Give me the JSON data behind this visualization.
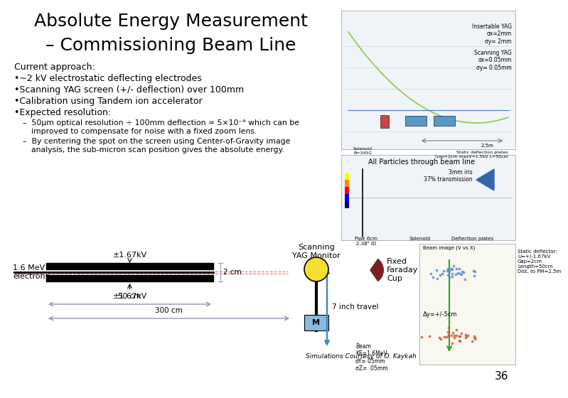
{
  "title_line1": "Absolute Energy Measurement",
  "title_line2": "– Commissioning Beam Line",
  "title_fontsize": 18,
  "background_color": "#ffffff",
  "bullet_header": "Current approach:",
  "bullets": [
    "•~2 kV electrostatic deflecting electrodes",
    "•Scanning YAG screen (+/- deflection) over 100mm",
    "•Calibration using Tandem ion accelerator",
    "•Expected resolution:"
  ],
  "sub_bullet1_dash": "–",
  "sub_bullet1_text": "50μm optical resolution ÷ 100mm deflection = 5×10⁻⁴ which can be improved to compensate for noise with a fixed zoom lens.",
  "sub_bullet2_dash": "–",
  "sub_bullet2_text": "By centering the spot on the screen using Center-of-Gravity image analysis, the sub-micron scan position gives the absolute energy.",
  "page_number": "36",
  "label_167kv_top": "±1.67kV",
  "label_167kv_bot": "±1.67kV",
  "label_2cm": "2 cm",
  "label_50cm": "50 cm",
  "label_300cm": "300 cm",
  "label_beam": "1.6 MeV\nelectrons",
  "label_scanning": "Scanning\nYAG Monitor",
  "label_fixed_fc": "Fixed\nFaraday\nCup",
  "label_7inch": "7 inch travel",
  "label_sim": "Simulations Courtesy of O. Kaykah",
  "tr_label1": "Insertable YAG\nσx=2mm\nσy= 2mm",
  "tr_label2": "Scanning YAG\nσx=0.05mm\nσy= 0.05mm",
  "tr_label3": "All Particles through beam line",
  "tr_label4": "3mm iris\n37% transmission",
  "tr_label5": "Pipe 6cm\n2.38\" ID",
  "tr_label6": "Solenoid",
  "tr_label7": "Deflection plates",
  "tr_label8": "Beam image (V vs X)",
  "tr_label9": "Static deflector:\nU=+/-1.67kV\nGap=2cm\nLength=50cm\nDist. to PM=2.5m",
  "tr_label10": "Beam\nKE=1.6MeV\nσY=.05mm\nσZ= .05mm",
  "tr_label11": "Δy=+/-5cm"
}
